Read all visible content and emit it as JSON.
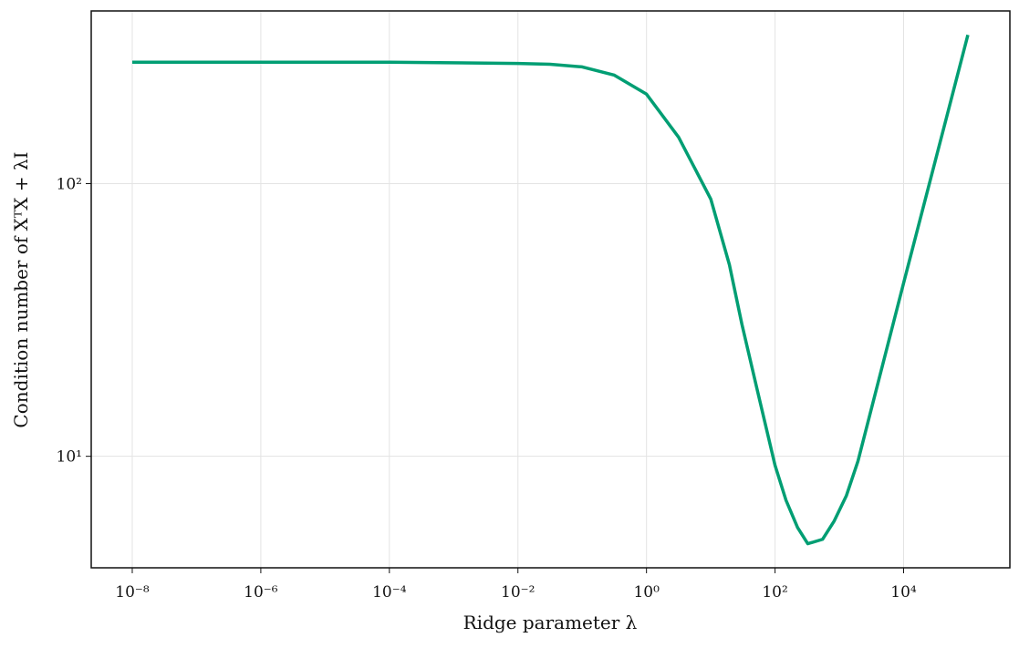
{
  "chart_data": {
    "type": "line",
    "xlabel": "Ridge parameter λ",
    "ylabel": "Condition number of XᵀX + λI",
    "x": [
      1e-08,
      1e-06,
      0.0001,
      0.01,
      0.0316,
      0.1,
      0.316,
      1,
      3.16,
      10,
      19.5,
      30.5,
      52,
      100,
      148,
      224,
      323,
      548,
      832,
      1290,
      1950,
      10000,
      31600,
      100000
    ],
    "series": [
      {
        "color": "#009E73",
        "values": [
          279,
          279,
          279,
          276,
          274,
          268,
          250,
          213,
          148,
          87.8,
          50.4,
          30.5,
          17.8,
          9.26,
          6.9,
          5.48,
          4.78,
          4.96,
          5.79,
          7.18,
          9.6,
          43.2,
          123,
          351
        ]
      }
    ],
    "xscale": "log",
    "yscale": "log",
    "xlim": [
      2.3e-09,
      450000
    ],
    "ylim": [
      3.9,
      430
    ],
    "xticks": [
      {
        "value": 1e-08,
        "label": "10⁻⁸"
      },
      {
        "value": 1e-06,
        "label": "10⁻⁶"
      },
      {
        "value": 0.0001,
        "label": "10⁻⁴"
      },
      {
        "value": 0.01,
        "label": "10⁻²"
      },
      {
        "value": 1,
        "label": "10⁰"
      },
      {
        "value": 100,
        "label": "10²"
      },
      {
        "value": 10000,
        "label": "10⁴"
      }
    ],
    "yticks": [
      {
        "value": 10,
        "label": "10¹"
      },
      {
        "value": 100,
        "label": "10²"
      }
    ],
    "grid": true
  }
}
